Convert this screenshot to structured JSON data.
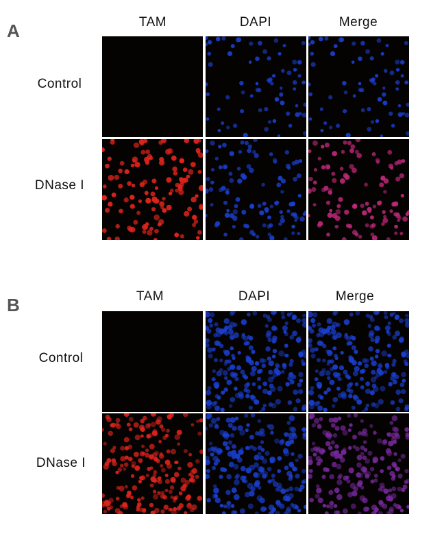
{
  "panels": [
    {
      "letter": "A",
      "columns": [
        "TAM",
        "DAPI",
        "Merge"
      ],
      "rows": [
        "Control",
        "DNase I"
      ],
      "images": [
        [
          "dark-empty",
          "blue-nuclei-sparse",
          "blue-nuclei-sparse"
        ],
        [
          "red-nuclei",
          "blue-nuclei",
          "magenta-nuclei"
        ]
      ]
    },
    {
      "letter": "B",
      "columns": [
        "TAM",
        "DAPI",
        "Merge"
      ],
      "rows": [
        "Control",
        "DNase I"
      ],
      "images": [
        [
          "dark-empty",
          "blue-nuclei-dense",
          "blue-nuclei-dense"
        ],
        [
          "red-nuclei-dense",
          "blue-nuclei-dense",
          "purple-nuclei-dense"
        ]
      ]
    }
  ],
  "colors": {
    "background": "#050302",
    "tam_red": "#e0241c",
    "dapi_blue": "#1a3fd0",
    "merge_magenta": "#c0287a",
    "merge_purple": "#7a2aa0"
  }
}
